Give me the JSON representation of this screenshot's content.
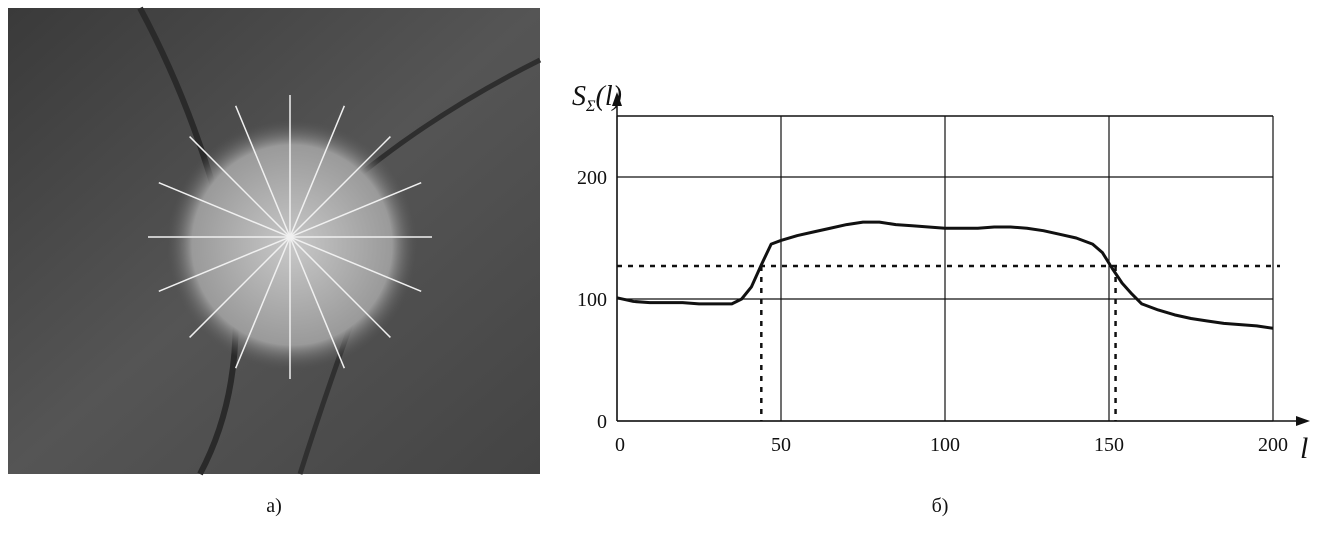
{
  "captions": [
    "а)",
    "б)"
  ],
  "chart_data": {
    "type": "line",
    "ylabel": {
      "base": "S",
      "subscript": "Σ",
      "arg": "(l)"
    },
    "xlabel": "l",
    "x": [
      0,
      5,
      10,
      15,
      20,
      25,
      30,
      35,
      38,
      41,
      44,
      47,
      50,
      55,
      60,
      65,
      70,
      75,
      80,
      85,
      90,
      95,
      100,
      105,
      110,
      115,
      120,
      125,
      130,
      135,
      140,
      145,
      148,
      151,
      154,
      157,
      160,
      165,
      170,
      175,
      180,
      185,
      190,
      195,
      200
    ],
    "series": [
      {
        "color": "#111111",
        "values": [
          101,
          98,
          97,
          97,
          97,
          96,
          96,
          96,
          100,
          110,
          128,
          145,
          148,
          152,
          155,
          158,
          161,
          163,
          163,
          161,
          160,
          159,
          158,
          158,
          158,
          159,
          159,
          158,
          156,
          153,
          150,
          145,
          138,
          125,
          113,
          104,
          96,
          91,
          87,
          84,
          82,
          80,
          79,
          78,
          76
        ]
      }
    ],
    "xlim": [
      0,
      200
    ],
    "ylim": [
      0,
      250
    ],
    "xticks": [
      0,
      50,
      100,
      150,
      200
    ],
    "yticks": [
      0,
      100,
      200
    ],
    "grid": true,
    "threshold_y": 127,
    "threshold_x": [
      44,
      152
    ]
  }
}
